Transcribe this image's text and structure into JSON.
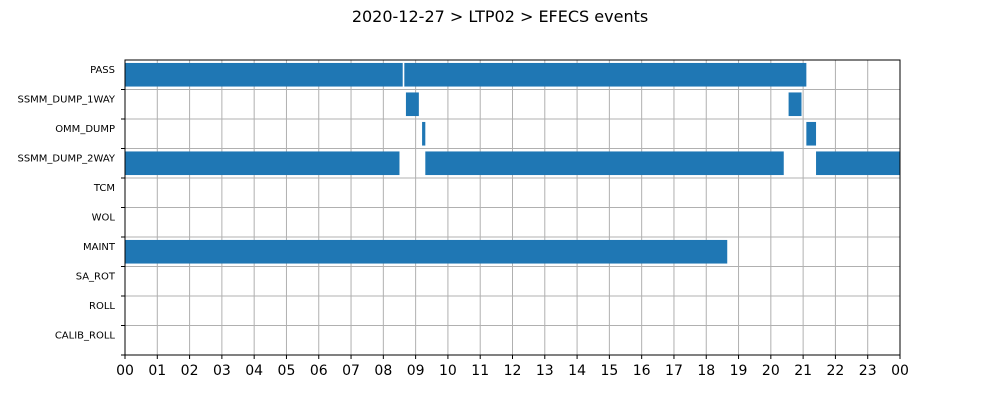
{
  "chart_data": {
    "type": "bar",
    "orientation": "horizontal-timeline",
    "title": "2020-12-27 > LTP02 > EFECS events",
    "categories": [
      "PASS",
      "SSMM_DUMP_1WAY",
      "OMM_DUMP",
      "SSMM_DUMP_2WAY",
      "TCM",
      "WOL",
      "MAINT",
      "SA_ROT",
      "ROLL",
      "CALIB_ROLL"
    ],
    "x_ticks": [
      "00",
      "01",
      "02",
      "03",
      "04",
      "05",
      "06",
      "07",
      "08",
      "09",
      "10",
      "11",
      "12",
      "13",
      "14",
      "15",
      "16",
      "17",
      "18",
      "19",
      "20",
      "21",
      "22",
      "23",
      "00"
    ],
    "xlim_hours": [
      0,
      24
    ],
    "grid": true,
    "bar_color": "#1f77b4",
    "events": [
      {
        "category": "PASS",
        "start": 0.0,
        "end": 8.6
      },
      {
        "category": "PASS",
        "start": 8.65,
        "end": 21.1
      },
      {
        "category": "SSMM_DUMP_1WAY",
        "start": 8.7,
        "end": 9.1
      },
      {
        "category": "SSMM_DUMP_1WAY",
        "start": 20.55,
        "end": 20.95
      },
      {
        "category": "OMM_DUMP",
        "start": 9.2,
        "end": 9.3
      },
      {
        "category": "OMM_DUMP",
        "start": 21.1,
        "end": 21.4
      },
      {
        "category": "SSMM_DUMP_2WAY",
        "start": 0.0,
        "end": 8.5
      },
      {
        "category": "SSMM_DUMP_2WAY",
        "start": 9.3,
        "end": 20.4
      },
      {
        "category": "SSMM_DUMP_2WAY",
        "start": 21.4,
        "end": 24.0
      },
      {
        "category": "MAINT",
        "start": 0.0,
        "end": 18.65
      }
    ]
  }
}
